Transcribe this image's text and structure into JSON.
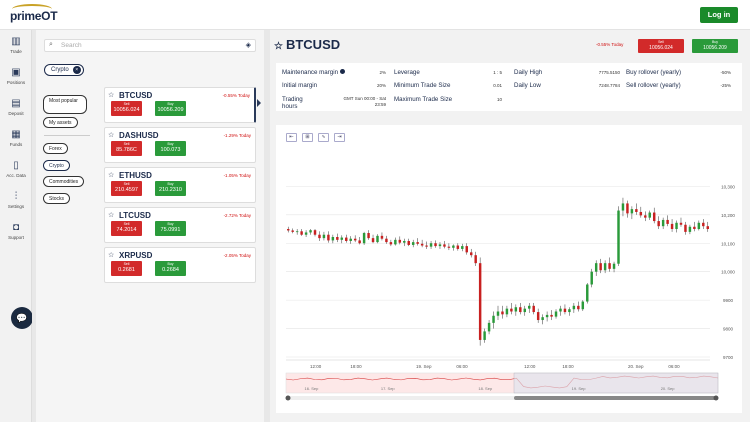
{
  "app": {
    "logo": "primeOT",
    "login_label": "Log in"
  },
  "nav": [
    {
      "icon": "bar-chart-icon",
      "glyph": "▥",
      "label": "Trade"
    },
    {
      "icon": "briefcase-icon",
      "glyph": "▣",
      "label": "Positions"
    },
    {
      "icon": "deposit-icon",
      "glyph": "▤",
      "label": "Deposit"
    },
    {
      "icon": "funds-icon",
      "glyph": "▦",
      "label": "Funds"
    },
    {
      "icon": "document-icon",
      "glyph": "▯",
      "label": "Acc. Data"
    },
    {
      "icon": "sliders-icon",
      "glyph": "⫶",
      "label": "Settings"
    },
    {
      "icon": "support-icon",
      "glyph": "◘",
      "label": "Support"
    }
  ],
  "search": {
    "placeholder": "Search"
  },
  "filter_chip": "Crypto",
  "categories": [
    "Most popular",
    "My assets",
    "Forex",
    "Crypto",
    "Commodities",
    "Stocks"
  ],
  "instruments": [
    {
      "symbol": "BTCUSD",
      "change": "-0.55% Today",
      "sell_label": "Sell",
      "sell": "10056.024",
      "buy_label": "Buy",
      "buy": "10056.209"
    },
    {
      "symbol": "DASHUSD",
      "change": "-1.29% Today",
      "sell_label": "Sell",
      "sell": "85.786C",
      "buy_label": "Buy",
      "buy": "100.073"
    },
    {
      "symbol": "ETHUSD",
      "change": "-1.05% Today",
      "sell_label": "Sell",
      "sell": "210.4597",
      "buy_label": "Buy",
      "buy": "210.2310"
    },
    {
      "symbol": "LTCUSD",
      "change": "-2.72% Today",
      "sell_label": "Sell",
      "sell": "74.2014",
      "buy_label": "Buy",
      "buy": "75.0991"
    },
    {
      "symbol": "XRPUSD",
      "change": "-2.05% Today",
      "sell_label": "Sell",
      "sell": "0.2681",
      "buy_label": "Buy",
      "buy": "0.2684"
    }
  ],
  "detail": {
    "symbol": "BTCUSD",
    "change": "-0.55% Today",
    "sell_label": "Sell",
    "sell": "10056.024",
    "buy_label": "Buy",
    "buy": "10056.209",
    "info": {
      "maint_margin_label": "Maintenance margin",
      "maint_margin": "2%",
      "initial_margin_label": "Initial margin",
      "initial_margin": "20%",
      "trading_hours_label": "Trading hours",
      "trading_hours": "GMT Sun 00:00 - Sat 23:59",
      "leverage_label": "Leverage",
      "leverage": "1 : 5",
      "min_trade_label": "Minimum Trade Size",
      "min_trade": "0.01",
      "max_trade_label": "Maximum Trade Size",
      "max_trade": "10",
      "daily_high_label": "Daily High",
      "daily_high": "7775.5150",
      "daily_low_label": "Daily Low",
      "daily_low": "7248.7784",
      "rollover_buy_label": "Buy rollover (yearly)",
      "rollover_buy": "-50%",
      "rollover_sell_label": "Sell rollover (yearly)",
      "rollover_sell": "-25%"
    }
  },
  "chart_tools": [
    "⇤",
    "⊞",
    "∿",
    "⇥"
  ],
  "chart_data": {
    "type": "candlestick",
    "x_ticks": [
      "12:00",
      "18:00",
      "19. Sep",
      "06:00",
      "12:00",
      "18:00",
      "20. Sep",
      "06:00"
    ],
    "y_ticks": [
      "10,300",
      "10,200",
      "10,100",
      "10,000",
      "9900",
      "9800",
      "9700"
    ],
    "navigator_ticks": [
      "16. Sep",
      "17. Sep",
      "18. Sep",
      "19. Sep",
      "20. Sep"
    ],
    "ylim": [
      9700,
      10340
    ],
    "candles": [
      [
        10150,
        10158,
        10138,
        10145
      ],
      [
        10145,
        10152,
        10135,
        10140
      ],
      [
        10140,
        10150,
        10130,
        10142
      ],
      [
        10142,
        10150,
        10126,
        10130
      ],
      [
        10130,
        10146,
        10122,
        10138
      ],
      [
        10138,
        10150,
        10130,
        10146
      ],
      [
        10146,
        10150,
        10124,
        10130
      ],
      [
        10130,
        10142,
        10108,
        10118
      ],
      [
        10118,
        10140,
        10110,
        10130
      ],
      [
        10130,
        10142,
        10102,
        10110
      ],
      [
        10110,
        10130,
        10100,
        10122
      ],
      [
        10122,
        10134,
        10104,
        10112
      ],
      [
        10112,
        10128,
        10100,
        10120
      ],
      [
        10120,
        10130,
        10102,
        10108
      ],
      [
        10108,
        10125,
        10098,
        10116
      ],
      [
        10116,
        10128,
        10104,
        10110
      ],
      [
        10110,
        10122,
        10096,
        10100
      ],
      [
        10100,
        10140,
        10094,
        10136
      ],
      [
        10136,
        10146,
        10112,
        10118
      ],
      [
        10118,
        10130,
        10100,
        10104
      ],
      [
        10104,
        10132,
        10100,
        10126
      ],
      [
        10126,
        10138,
        10110,
        10116
      ],
      [
        10116,
        10126,
        10098,
        10104
      ],
      [
        10104,
        10112,
        10090,
        10096
      ],
      [
        10096,
        10120,
        10092,
        10112
      ],
      [
        10112,
        10124,
        10096,
        10102
      ],
      [
        10102,
        10116,
        10090,
        10108
      ],
      [
        10108,
        10116,
        10090,
        10094
      ],
      [
        10094,
        10112,
        10086,
        10104
      ],
      [
        10104,
        10118,
        10092,
        10098
      ],
      [
        10098,
        10112,
        10086,
        10092
      ],
      [
        10092,
        10106,
        10080,
        10088
      ],
      [
        10088,
        10108,
        10080,
        10100
      ],
      [
        10100,
        10110,
        10084,
        10090
      ],
      [
        10090,
        10104,
        10080,
        10096
      ],
      [
        10096,
        10108,
        10082,
        10088
      ],
      [
        10088,
        10100,
        10076,
        10084
      ],
      [
        10084,
        10096,
        10074,
        10092
      ],
      [
        10092,
        10100,
        10074,
        10080
      ],
      [
        10080,
        10098,
        10072,
        10090
      ],
      [
        10090,
        10100,
        10060,
        10068
      ],
      [
        10068,
        10080,
        10050,
        10058
      ],
      [
        10058,
        10070,
        10020,
        10030
      ],
      [
        10030,
        10050,
        9740,
        9760
      ],
      [
        9760,
        9800,
        9750,
        9790
      ],
      [
        9790,
        9830,
        9780,
        9820
      ],
      [
        9820,
        9860,
        9800,
        9845
      ],
      [
        9845,
        9880,
        9830,
        9860
      ],
      [
        9860,
        9880,
        9835,
        9850
      ],
      [
        9850,
        9880,
        9840,
        9870
      ],
      [
        9870,
        9890,
        9850,
        9860
      ],
      [
        9860,
        9885,
        9845,
        9875
      ],
      [
        9875,
        9890,
        9850,
        9858
      ],
      [
        9858,
        9880,
        9845,
        9870
      ],
      [
        9870,
        9890,
        9855,
        9880
      ],
      [
        9880,
        9890,
        9850,
        9858
      ],
      [
        9858,
        9870,
        9820,
        9830
      ],
      [
        9830,
        9850,
        9815,
        9840
      ],
      [
        9840,
        9860,
        9825,
        9848
      ],
      [
        9848,
        9865,
        9830,
        9842
      ],
      [
        9842,
        9868,
        9835,
        9860
      ],
      [
        9860,
        9880,
        9845,
        9870
      ],
      [
        9870,
        9885,
        9850,
        9858
      ],
      [
        9858,
        9875,
        9845,
        9868
      ],
      [
        9868,
        9890,
        9855,
        9880
      ],
      [
        9880,
        9895,
        9860,
        9868
      ],
      [
        9868,
        9900,
        9862,
        9895
      ],
      [
        9895,
        9960,
        9888,
        9955
      ],
      [
        9955,
        10010,
        9945,
        10000
      ],
      [
        10000,
        10040,
        9985,
        10030
      ],
      [
        10030,
        10045,
        9995,
        10005
      ],
      [
        10005,
        10040,
        9995,
        10030
      ],
      [
        10030,
        10050,
        10000,
        10010
      ],
      [
        10010,
        10035,
        9998,
        10028
      ],
      [
        10028,
        10230,
        10020,
        10215
      ],
      [
        10215,
        10260,
        10195,
        10240
      ],
      [
        10240,
        10250,
        10190,
        10205
      ],
      [
        10205,
        10230,
        10185,
        10220
      ],
      [
        10220,
        10240,
        10200,
        10210
      ],
      [
        10210,
        10228,
        10190,
        10198
      ],
      [
        10198,
        10212,
        10178,
        10190
      ],
      [
        10190,
        10215,
        10182,
        10208
      ],
      [
        10208,
        10225,
        10170,
        10178
      ],
      [
        10178,
        10195,
        10150,
        10160
      ],
      [
        10160,
        10190,
        10150,
        10182
      ],
      [
        10182,
        10198,
        10160,
        10168
      ],
      [
        10168,
        10185,
        10140,
        10150
      ],
      [
        10150,
        10180,
        10138,
        10172
      ],
      [
        10172,
        10190,
        10158,
        10165
      ],
      [
        10165,
        10175,
        10130,
        10140
      ],
      [
        10140,
        10165,
        10132,
        10158
      ],
      [
        10158,
        10175,
        10142,
        10150
      ],
      [
        10150,
        10180,
        10145,
        10172
      ],
      [
        10172,
        10185,
        10150,
        10160
      ],
      [
        10160,
        10175,
        10140,
        10150
      ]
    ]
  },
  "colors": {
    "up": "#2a9a3a",
    "down": "#c82020",
    "brand": "#1b2a4a",
    "login": "#1a8a2a"
  }
}
